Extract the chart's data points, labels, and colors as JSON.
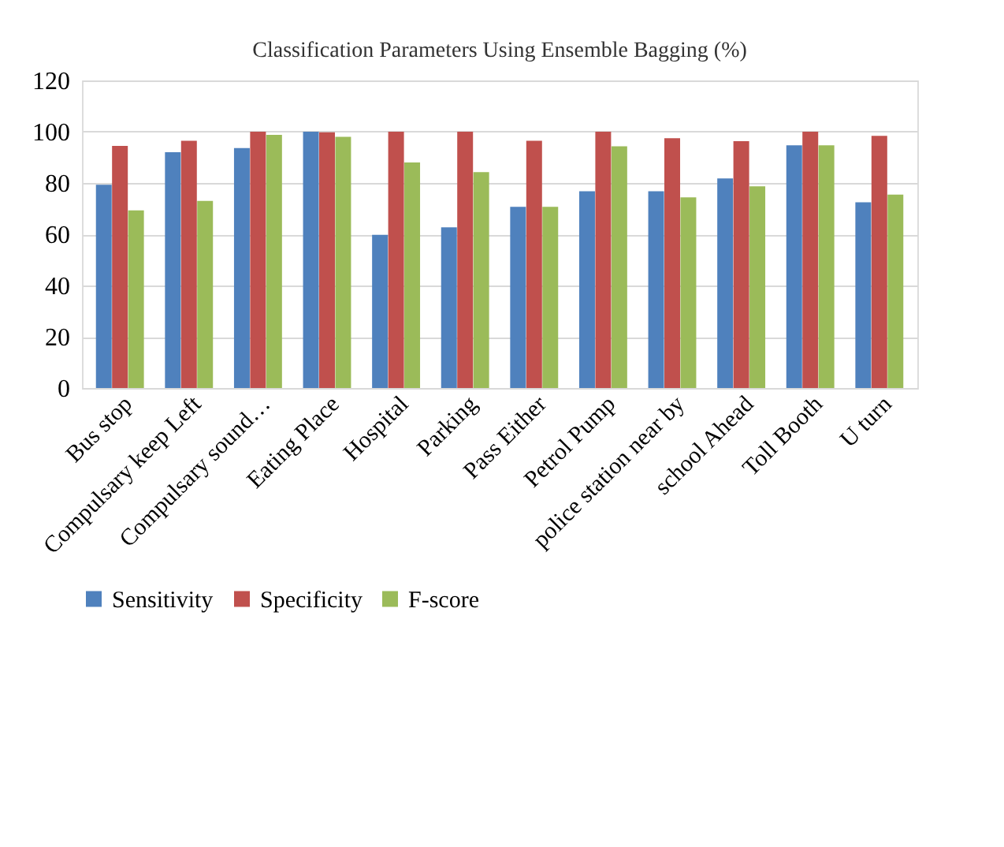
{
  "chart_data": {
    "type": "bar",
    "title": "Classification Parameters Using Ensemble Bagging (%)",
    "categories": [
      "Bus stop",
      "Compulsary keep Left",
      "Compulsary sound…",
      "Eating Place",
      "Hospital",
      "Parking",
      "Pass Either",
      "Petrol Pump",
      "police station near by",
      "school Ahead",
      "Toll Booth",
      "U turn"
    ],
    "series": [
      {
        "name": "Sensitivity",
        "color": "#4f81bd",
        "values": [
          79.3,
          92,
          93.6,
          100,
          59.8,
          62.7,
          70.7,
          76.8,
          76.8,
          81.8,
          94.7,
          72.5
        ]
      },
      {
        "name": "Specificity",
        "color": "#c0504d",
        "values": [
          94.5,
          96.5,
          100,
          99.8,
          100,
          100,
          96.5,
          100,
          97.5,
          96.3,
          100,
          98.4
        ]
      },
      {
        "name": "F-score",
        "color": "#9bbb59",
        "values": [
          69.3,
          73,
          98.8,
          98,
          88,
          84.2,
          70.7,
          94.3,
          74.4,
          78.7,
          94.7,
          75.5
        ]
      }
    ],
    "ylim": [
      0,
      120
    ],
    "yticks": [
      0,
      20,
      40,
      60,
      80,
      100,
      120
    ],
    "grid": "y",
    "legend": "bottom"
  }
}
